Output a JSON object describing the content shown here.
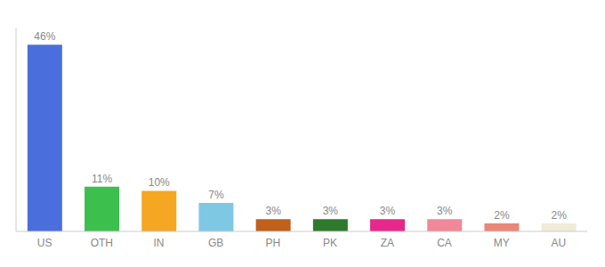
{
  "chart_data": {
    "type": "bar",
    "categories": [
      "US",
      "OTH",
      "IN",
      "GB",
      "PH",
      "PK",
      "ZA",
      "CA",
      "MY",
      "AU"
    ],
    "values": [
      46,
      11,
      10,
      7,
      3,
      3,
      3,
      3,
      2,
      2
    ],
    "value_labels": [
      "46%",
      "11%",
      "10%",
      "7%",
      "3%",
      "3%",
      "3%",
      "3%",
      "2%",
      "2%"
    ],
    "colors": [
      "#4a6fdc",
      "#3dbf4e",
      "#f5a623",
      "#7ec8e3",
      "#c0601a",
      "#2d7a2d",
      "#e8278c",
      "#f08898",
      "#e88878",
      "#f0ead8"
    ],
    "ylim": [
      0,
      50
    ],
    "data_labels": true,
    "tick_labels": "x",
    "grid": false
  }
}
